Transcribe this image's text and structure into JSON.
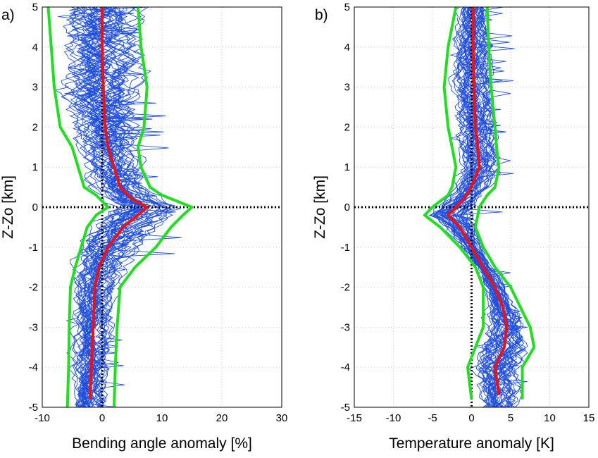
{
  "chart_data": [
    {
      "type": "line",
      "panel_label": "a)",
      "xlabel": "Bending angle anomaly [%]",
      "ylabel": "Z-Zo [km]",
      "xlim": [
        -10,
        30
      ],
      "ylim": [
        -5,
        5
      ],
      "xticks": [
        "-10",
        "0",
        "10",
        "20",
        "30"
      ],
      "yticks": [
        "-5",
        "-4",
        "-3",
        "-2",
        "-1",
        "0",
        "1",
        "2",
        "3",
        "4",
        "5"
      ],
      "grid": true,
      "reference_lines": {
        "x": 0,
        "y": 0,
        "style": "dotted",
        "color": "#000000"
      },
      "colors": {
        "profiles": "#1f4fe0",
        "mean": "#ee1111",
        "bounds": "#22dd22"
      },
      "series": [
        {
          "role": "mean",
          "y": [
            -4.8,
            -4.0,
            -3.0,
            -2.0,
            -1.5,
            -1.0,
            -0.5,
            -0.2,
            0.0,
            0.2,
            0.5,
            1.0,
            1.5,
            2.0,
            3.0,
            4.0,
            5.0
          ],
          "x": [
            -2.0,
            -1.8,
            -1.5,
            -1.2,
            -0.5,
            1.0,
            3.5,
            6.0,
            7.5,
            5.0,
            3.0,
            2.0,
            1.0,
            0.5,
            0.2,
            0.0,
            0.0
          ]
        },
        {
          "role": "lower-bound",
          "y": [
            -5.0,
            -4.0,
            -3.0,
            -2.0,
            -1.5,
            -1.0,
            -0.5,
            -0.2,
            0.0,
            0.3,
            0.5,
            1.0,
            1.5,
            2.0,
            2.5,
            3.0,
            4.0,
            5.0
          ],
          "x": [
            -5.8,
            -5.6,
            -5.5,
            -5.3,
            -4.5,
            -3.5,
            -2.5,
            -1.0,
            1.0,
            -1.0,
            -3.0,
            -4.0,
            -5.0,
            -7.0,
            -7.5,
            -8.0,
            -8.5,
            -9.0
          ]
        },
        {
          "role": "upper-bound",
          "y": [
            -5.0,
            -4.0,
            -3.0,
            -2.0,
            -1.5,
            -1.0,
            -0.5,
            -0.2,
            0.0,
            0.3,
            0.5,
            1.0,
            1.5,
            2.0,
            3.0,
            4.0,
            5.0
          ],
          "x": [
            2.0,
            2.2,
            2.5,
            3.0,
            5.5,
            9.0,
            11.5,
            13.5,
            15.0,
            10.0,
            8.0,
            6.5,
            6.0,
            7.0,
            7.5,
            6.5,
            6.0
          ]
        }
      ]
    },
    {
      "type": "line",
      "panel_label": "b)",
      "xlabel": "Temperature anomaly [K]",
      "ylabel": "Z-Zo [km]",
      "xlim": [
        -15,
        15
      ],
      "ylim": [
        -5,
        5
      ],
      "xticks": [
        "-15",
        "-10",
        "-5",
        "0",
        "5",
        "10",
        "15"
      ],
      "yticks": [
        "-5",
        "-4",
        "-3",
        "-2",
        "-1",
        "0",
        "1",
        "2",
        "3",
        "4",
        "5"
      ],
      "grid": true,
      "reference_lines": {
        "x": 0,
        "y": 0,
        "style": "dotted",
        "color": "#000000"
      },
      "colors": {
        "profiles": "#1f4fe0",
        "mean": "#ee1111",
        "bounds": "#22dd22"
      },
      "series": [
        {
          "role": "mean",
          "y": [
            -4.7,
            -4.0,
            -3.5,
            -3.0,
            -2.5,
            -2.0,
            -1.5,
            -1.0,
            -0.5,
            -0.2,
            0.0,
            0.2,
            0.5,
            1.0,
            1.5,
            2.0,
            3.0,
            4.0,
            5.0
          ],
          "x": [
            3.5,
            3.0,
            4.2,
            4.5,
            4.0,
            3.0,
            1.5,
            0.0,
            -1.5,
            -3.0,
            -2.0,
            -1.0,
            0.0,
            1.0,
            0.8,
            0.5,
            0.3,
            0.2,
            0.2
          ]
        },
        {
          "role": "lower-bound",
          "y": [
            -4.8,
            -4.0,
            -3.0,
            -2.0,
            -1.5,
            -1.0,
            -0.5,
            -0.2,
            0.0,
            0.3,
            0.5,
            1.0,
            1.5,
            2.0,
            3.0,
            4.0,
            5.0
          ],
          "x": [
            0.0,
            -0.5,
            1.5,
            1.5,
            0.5,
            -1.5,
            -4.0,
            -6.0,
            -5.0,
            -3.0,
            -2.5,
            -2.0,
            -2.5,
            -3.0,
            -3.5,
            -3.0,
            -2.0
          ]
        },
        {
          "role": "upper-bound",
          "y": [
            -4.8,
            -4.0,
            -3.5,
            -3.0,
            -2.0,
            -1.5,
            -1.0,
            -0.5,
            -0.2,
            0.0,
            0.3,
            0.5,
            1.0,
            1.5,
            2.0,
            3.0,
            4.0,
            5.0
          ],
          "x": [
            6.5,
            6.5,
            8.0,
            7.5,
            5.0,
            3.0,
            1.5,
            0.5,
            0.8,
            1.0,
            2.0,
            3.0,
            3.5,
            3.2,
            3.0,
            2.5,
            2.2,
            2.0
          ]
        }
      ]
    }
  ]
}
